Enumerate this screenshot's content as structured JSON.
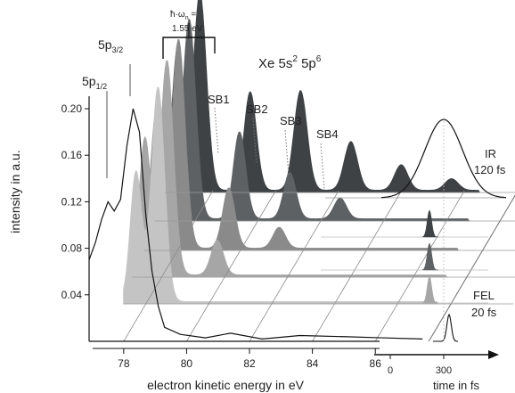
{
  "chart_data": {
    "type": "area",
    "title": "Xe 5s",
    "title_sup1": "2",
    "title_mid": " 5p",
    "title_sup2": "6",
    "xlabel": "electron kinetic energy in eV",
    "ylabel": "intensity in a.u.",
    "xlim": [
      76.9,
      87.7
    ],
    "ylim": [
      0.0,
      0.21
    ],
    "x_ticks": [
      "78",
      "80",
      "82",
      "84",
      "86"
    ],
    "y_ticks": [
      "0.04",
      "0.08",
      "0.12",
      "0.16",
      "0.20"
    ],
    "grid": false,
    "peak_labels": {
      "p12_main": "5p",
      "p12_sub": "1/2",
      "p32_main": "5p",
      "p32_sub": "3/2",
      "sb1": "SB1",
      "sb2": "SB2",
      "sb3": "SB3",
      "sb4": "SB4"
    },
    "photon_energy_label_1": "ħ·ω",
    "photon_energy_label_sub": "n",
    "photon_energy_label_eq": " =",
    "photon_energy_label_2": "1.55 eV",
    "ir_label": "IR",
    "ir_duration": "120 fs",
    "fel_label": "FEL",
    "fel_duration": "20 fs",
    "time_axis_label": "time in fs",
    "time_ticks": [
      "0",
      "300"
    ],
    "series": [
      {
        "color": "#c4c4c4",
        "peaks": [
          {
            "x": 77.4,
            "y": 0.112,
            "w": 0.26
          },
          {
            "x": 78.1,
            "y": 0.185,
            "w": 0.3
          }
        ]
      },
      {
        "color": "#a6a6a6",
        "peaks": [
          {
            "x": 77.4,
            "y": 0.118,
            "w": 0.26
          },
          {
            "x": 78.1,
            "y": 0.185,
            "w": 0.3
          },
          {
            "x": 79.7,
            "y": 0.03,
            "w": 0.28
          }
        ]
      },
      {
        "color": "#8a8a8a",
        "peaks": [
          {
            "x": 77.4,
            "y": 0.12,
            "w": 0.26
          },
          {
            "x": 78.1,
            "y": 0.18,
            "w": 0.3
          },
          {
            "x": 79.7,
            "y": 0.052,
            "w": 0.28
          },
          {
            "x": 81.3,
            "y": 0.018,
            "w": 0.28
          }
        ]
      },
      {
        "color": "#5e6163",
        "peaks": [
          {
            "x": 77.4,
            "y": 0.122,
            "w": 0.26
          },
          {
            "x": 78.1,
            "y": 0.172,
            "w": 0.3
          },
          {
            "x": 79.7,
            "y": 0.075,
            "w": 0.28
          },
          {
            "x": 81.3,
            "y": 0.04,
            "w": 0.28
          },
          {
            "x": 82.9,
            "y": 0.018,
            "w": 0.28
          }
        ]
      },
      {
        "color": "#3e4244",
        "peaks": [
          {
            "x": 77.4,
            "y": 0.125,
            "w": 0.26
          },
          {
            "x": 78.1,
            "y": 0.17,
            "w": 0.3
          },
          {
            "x": 79.7,
            "y": 0.085,
            "w": 0.28
          },
          {
            "x": 81.3,
            "y": 0.086,
            "w": 0.3
          },
          {
            "x": 82.9,
            "y": 0.042,
            "w": 0.3
          },
          {
            "x": 84.5,
            "y": 0.022,
            "w": 0.3
          },
          {
            "x": 86.1,
            "y": 0.01,
            "w": 0.3
          }
        ]
      }
    ],
    "fel_only_trace": {
      "x": [
        76.9,
        77.1,
        77.3,
        77.5,
        77.7,
        77.9,
        78.1,
        78.3,
        78.5,
        78.7,
        78.9,
        79.1,
        79.3
      ],
      "y": [
        0.07,
        0.085,
        0.105,
        0.12,
        0.112,
        0.122,
        0.168,
        0.2,
        0.18,
        0.11,
        0.06,
        0.03,
        0.012
      ]
    }
  }
}
